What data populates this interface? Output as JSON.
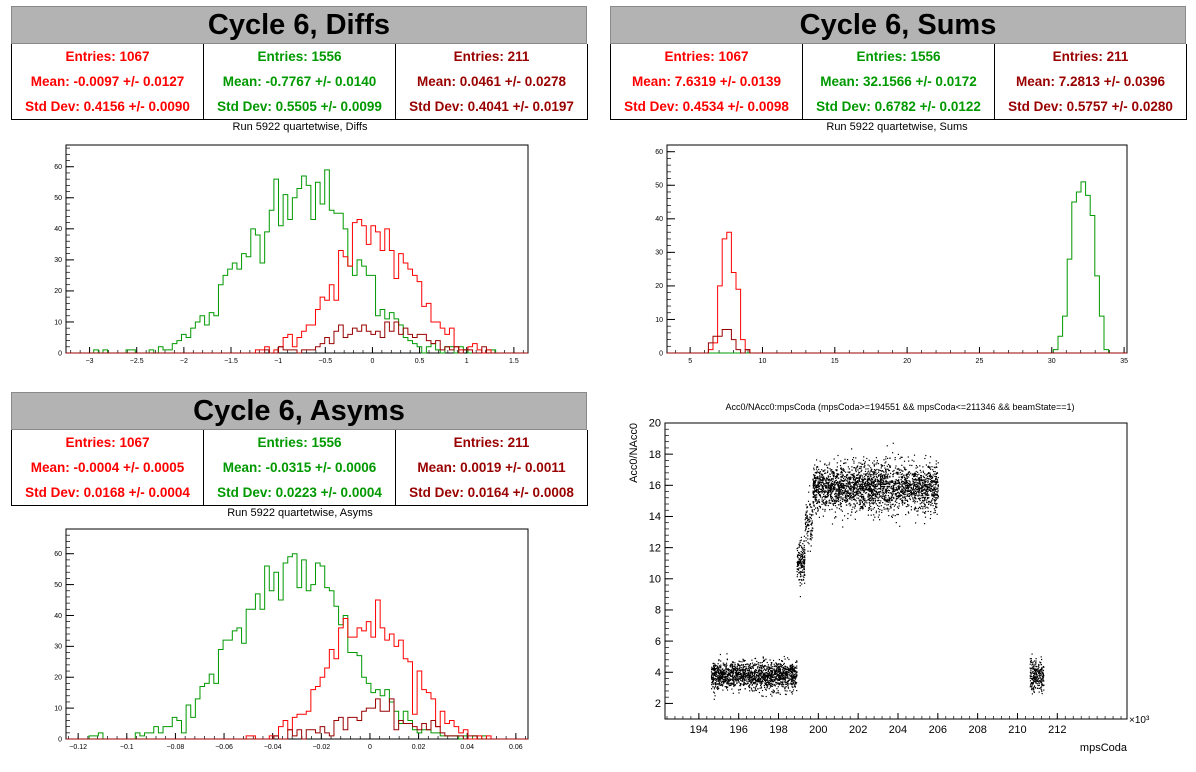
{
  "colors": {
    "red": "#ff0000",
    "green": "#009900",
    "darkred": "#990000"
  },
  "panels": {
    "diffs": {
      "title": "Cycle 6, Diffs",
      "subtitle": "Run 5922 quartetwise, Diffs",
      "stats": [
        {
          "entries": "Entries: 1067",
          "mean": "Mean: -0.0097 +/- 0.0127",
          "std": "Std Dev: 0.4156 +/- 0.0090",
          "color": "#ff0000"
        },
        {
          "entries": "Entries: 1556",
          "mean": "Mean: -0.7767 +/- 0.0140",
          "std": "Std Dev: 0.5505 +/- 0.0099",
          "color": "#009900"
        },
        {
          "entries": "Entries: 211",
          "mean": "Mean: 0.0461 +/- 0.0278",
          "std": "Std Dev: 0.4041 +/- 0.0197",
          "color": "#990000"
        }
      ]
    },
    "sums": {
      "title": "Cycle 6, Sums",
      "subtitle": "Run 5922 quartetwise, Sums",
      "stats": [
        {
          "entries": "Entries: 1067",
          "mean": "Mean: 7.6319 +/- 0.0139",
          "std": "Std Dev: 0.4534 +/- 0.0098",
          "color": "#ff0000"
        },
        {
          "entries": "Entries: 1556",
          "mean": "Mean: 32.1566 +/- 0.0172",
          "std": "Std Dev: 0.6782 +/- 0.0122",
          "color": "#009900"
        },
        {
          "entries": "Entries: 211",
          "mean": "Mean: 7.2813 +/- 0.0396",
          "std": "Std Dev: 0.5757 +/- 0.0280",
          "color": "#990000"
        }
      ]
    },
    "asyms": {
      "title": "Cycle 6, Asyms",
      "subtitle": "Run 5922 quartetwise, Asyms",
      "stats": [
        {
          "entries": "Entries: 1067",
          "mean": "Mean: -0.0004 +/- 0.0005",
          "std": "Std Dev: 0.0168 +/- 0.0004",
          "color": "#ff0000"
        },
        {
          "entries": "Entries: 1556",
          "mean": "Mean: -0.0315 +/- 0.0006",
          "std": "Std Dev: 0.0223 +/- 0.0004",
          "color": "#009900"
        },
        {
          "entries": "Entries: 211",
          "mean": "Mean: 0.0019 +/- 0.0011",
          "std": "Std Dev: 0.0164 +/- 0.0008",
          "color": "#990000"
        }
      ]
    },
    "scatter": {
      "title": "Acc0/NAcc0:mpsCoda (mpsCoda>=194551 && mpsCoda<=211346 && beamState==1)",
      "xlabel": "mpsCoda",
      "ylabel": "Acc0/NAcc0",
      "xexp": "×10³"
    }
  },
  "chart_data": [
    {
      "type": "histogram",
      "name": "diffs",
      "xlim": [
        -3.25,
        1.65
      ],
      "ylim": [
        0,
        67
      ],
      "xticks": [
        -3,
        -2.5,
        -2,
        -1.5,
        -1,
        -0.5,
        0,
        0.5,
        1,
        1.5
      ],
      "yticks": [
        0,
        10,
        20,
        30,
        40,
        50,
        60
      ],
      "grid": false,
      "series": [
        {
          "color": "#009900",
          "mean": -0.7767,
          "std": 0.5505,
          "peak": 55,
          "range": [
            -3.0,
            1.3
          ]
        },
        {
          "color": "#ff0000",
          "mean": -0.0097,
          "std": 0.4156,
          "peak": 38,
          "range": [
            -1.3,
            1.3
          ]
        },
        {
          "color": "#990000",
          "mean": 0.0461,
          "std": 0.4041,
          "peak": 8,
          "range": [
            -1.2,
            1.2
          ]
        }
      ]
    },
    {
      "type": "histogram",
      "name": "sums",
      "xlim": [
        3.4,
        35.2
      ],
      "ylim": [
        0,
        62
      ],
      "xticks": [
        5,
        10,
        15,
        20,
        25,
        30,
        35
      ],
      "yticks": [
        0,
        10,
        20,
        30,
        40,
        50,
        60
      ],
      "grid": false,
      "series": [
        {
          "color": "#ff0000",
          "mean": 7.6319,
          "std": 0.4534,
          "peak": 42,
          "range": [
            6.0,
            9.0
          ]
        },
        {
          "color": "#009900",
          "mean": 32.1566,
          "std": 0.6782,
          "peak": 58,
          "range": [
            30.0,
            34.5
          ]
        },
        {
          "color": "#990000",
          "mean": 7.2813,
          "std": 0.5757,
          "peak": 8,
          "range": [
            5.8,
            9.0
          ]
        }
      ]
    },
    {
      "type": "histogram",
      "name": "asyms",
      "xlim": [
        -0.125,
        0.065
      ],
      "ylim": [
        0,
        68
      ],
      "xticks": [
        -0.12,
        -0.1,
        -0.08,
        -0.06,
        -0.04,
        -0.02,
        0,
        0.02,
        0.04,
        0.06
      ],
      "yticks": [
        0,
        10,
        20,
        30,
        40,
        50,
        60
      ],
      "grid": false,
      "series": [
        {
          "color": "#009900",
          "mean": -0.0315,
          "std": 0.0223,
          "peak": 56,
          "range": [
            -0.115,
            0.055
          ]
        },
        {
          "color": "#ff0000",
          "mean": -0.0004,
          "std": 0.0168,
          "peak": 38,
          "range": [
            -0.05,
            0.05
          ]
        },
        {
          "color": "#990000",
          "mean": 0.0019,
          "std": 0.0164,
          "peak": 8,
          "range": [
            -0.04,
            0.045
          ]
        }
      ]
    },
    {
      "type": "scatter",
      "name": "scatter",
      "xlim": [
        192.3,
        215.5
      ],
      "ylim": [
        1,
        20
      ],
      "xticks": [
        194,
        196,
        198,
        200,
        202,
        204,
        206,
        208,
        210,
        212
      ],
      "yticks": [
        2,
        4,
        6,
        8,
        10,
        12,
        14,
        16,
        18,
        20
      ],
      "grid": false,
      "clusters": [
        {
          "x": [
            194.6,
            198.9
          ],
          "ycenter": 3.8,
          "yspread": 0.45,
          "n": 1600
        },
        {
          "x": [
            198.9,
            199.3
          ],
          "ycenter": 11.0,
          "yspread": 0.7,
          "n": 180
        },
        {
          "x": [
            199.3,
            199.7
          ],
          "ycenter": 13.5,
          "yspread": 0.8,
          "n": 100
        },
        {
          "x": [
            199.7,
            206.0
          ],
          "ycenter": 15.9,
          "yspread": 0.75,
          "n": 2600
        },
        {
          "x": [
            210.6,
            211.3
          ],
          "ycenter": 3.8,
          "yspread": 0.5,
          "n": 250
        }
      ]
    }
  ]
}
